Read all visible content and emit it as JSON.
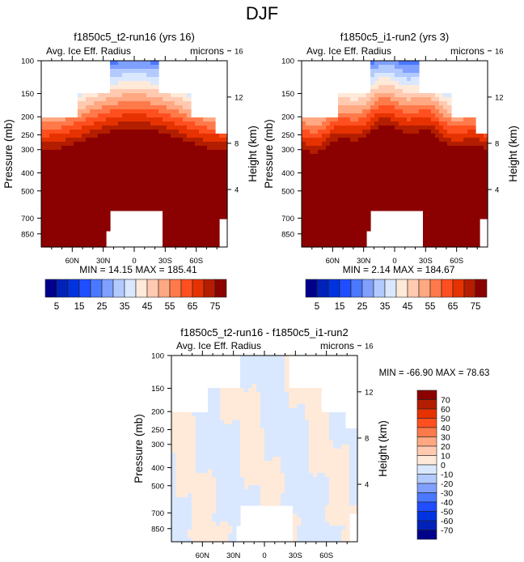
{
  "figure": {
    "title": "DJF"
  },
  "chart_data": [
    {
      "type": "heatmap",
      "id": "panel-1",
      "title": "f1850c5_t2-run16 (yrs 16)",
      "left_label": "Avg. Ice Eff. Radius",
      "right_label": "microns",
      "xlabel": "",
      "ylabel": "Pressure (mb)",
      "y2label": "Height (km)",
      "xticks": [
        "60N",
        "30N",
        "0",
        "30S",
        "60S"
      ],
      "xtick_values": [
        60,
        30,
        0,
        -30,
        -60
      ],
      "xlim": [
        90,
        -90
      ],
      "yticks": [
        100,
        150,
        200,
        250,
        300,
        400,
        500,
        700,
        850
      ],
      "ylim": [
        100,
        1000
      ],
      "y2ticks": [
        16,
        12,
        8,
        4
      ],
      "stats": "MIN =  14.15  MAX = 185.41",
      "min": 14.15,
      "max": 185.41,
      "colorbar": {
        "orientation": "horizontal",
        "levels": [
          5,
          10,
          15,
          20,
          25,
          30,
          35,
          40,
          45,
          50,
          55,
          60,
          65,
          70,
          75
        ],
        "labels": [
          "5",
          "15",
          "25",
          "35",
          "45",
          "55",
          "65",
          "75"
        ],
        "colors": [
          "#00008b",
          "#0022b8",
          "#0033e0",
          "#1f4dff",
          "#4a78ff",
          "#7fa0ff",
          "#b3caff",
          "#d9e8ff",
          "#ffe9d9",
          "#ffcab0",
          "#ffa882",
          "#ff7a4a",
          "#ff4f1f",
          "#e63200",
          "#b31d00",
          "#8b0000"
        ]
      }
    },
    {
      "type": "heatmap",
      "id": "panel-2",
      "title": "f1850c5_i1-run2 (yrs 3)",
      "left_label": "Avg. Ice Eff. Radius",
      "right_label": "microns",
      "xlabel": "",
      "ylabel": "Pressure (mb)",
      "y2label": "Height (km)",
      "xticks": [
        "60N",
        "30N",
        "0",
        "30S",
        "60S"
      ],
      "xtick_values": [
        60,
        30,
        0,
        -30,
        -60
      ],
      "xlim": [
        90,
        -90
      ],
      "yticks": [
        100,
        150,
        200,
        250,
        300,
        400,
        500,
        700,
        850
      ],
      "ylim": [
        100,
        1000
      ],
      "y2ticks": [
        16,
        12,
        8,
        4
      ],
      "stats": "MIN =   2.14  MAX = 184.67",
      "min": 2.14,
      "max": 184.67,
      "colorbar": {
        "orientation": "horizontal",
        "levels": [
          5,
          10,
          15,
          20,
          25,
          30,
          35,
          40,
          45,
          50,
          55,
          60,
          65,
          70,
          75
        ],
        "labels": [
          "5",
          "15",
          "25",
          "35",
          "45",
          "55",
          "65",
          "75"
        ],
        "colors": [
          "#00008b",
          "#0022b8",
          "#0033e0",
          "#1f4dff",
          "#4a78ff",
          "#7fa0ff",
          "#b3caff",
          "#d9e8ff",
          "#ffe9d9",
          "#ffcab0",
          "#ffa882",
          "#ff7a4a",
          "#ff4f1f",
          "#e63200",
          "#b31d00",
          "#8b0000"
        ]
      }
    },
    {
      "type": "heatmap",
      "id": "panel-diff",
      "title": "f1850c5_t2-run16 - f1850c5_i1-run2",
      "left_label": "Avg. Ice Eff. Radius",
      "right_label": "microns",
      "xlabel": "",
      "ylabel": "Pressure (mb)",
      "y2label": "Height (km)",
      "xticks": [
        "60N",
        "30N",
        "0",
        "30S",
        "60S"
      ],
      "xtick_values": [
        60,
        30,
        0,
        -30,
        -60
      ],
      "xlim": [
        90,
        -90
      ],
      "yticks": [
        100,
        150,
        200,
        250,
        300,
        400,
        500,
        700,
        850
      ],
      "ylim": [
        100,
        1000
      ],
      "y2ticks": [
        16,
        12,
        8,
        4
      ],
      "stats": "MIN = -66.90  MAX =  78.63",
      "min": -66.9,
      "max": 78.63,
      "colorbar": {
        "orientation": "vertical",
        "levels": [
          70,
          60,
          50,
          40,
          30,
          20,
          10,
          0,
          -10,
          -20,
          -30,
          -40,
          -50,
          -60,
          -70
        ],
        "labels": [
          "70",
          "60",
          "50",
          "40",
          "30",
          "20",
          "10",
          "0",
          "-10",
          "-20",
          "-30",
          "-40",
          "-50",
          "-60",
          "-70"
        ],
        "colors": [
          "#8b0000",
          "#b31d00",
          "#e63200",
          "#ff4f1f",
          "#ff7a4a",
          "#ffa882",
          "#ffcab0",
          "#ffe9d9",
          "#d9e8ff",
          "#b3caff",
          "#7fa0ff",
          "#4a78ff",
          "#1f4dff",
          "#0033e0",
          "#0022b8",
          "#00008b"
        ]
      }
    }
  ]
}
